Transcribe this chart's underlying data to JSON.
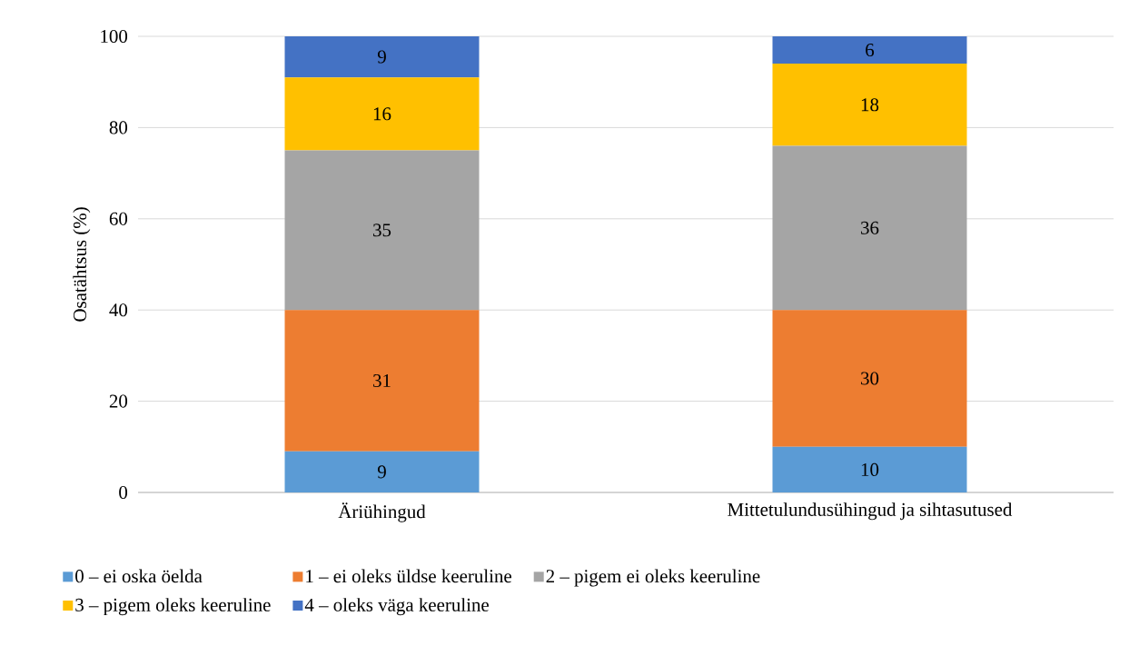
{
  "chart_data": {
    "type": "bar",
    "stacked": true,
    "ylabel": "Osatähtsus (%)",
    "categories": [
      "Äriühingud",
      "Mittetulundusühingud ja sihtasutused"
    ],
    "series": [
      {
        "name": "0 – ei oska öelda",
        "color": "#5b9bd5",
        "values": [
          9,
          10
        ]
      },
      {
        "name": "1 – ei oleks üldse keeruline",
        "color": "#ed7d31",
        "values": [
          31,
          30
        ]
      },
      {
        "name": "2 – pigem ei oleks keeruline",
        "color": "#a5a5a5",
        "values": [
          35,
          36
        ]
      },
      {
        "name": "3 – pigem oleks keeruline",
        "color": "#ffc000",
        "values": [
          16,
          18
        ]
      },
      {
        "name": "4 – oleks väga keeruline",
        "color": "#4472c4",
        "values": [
          9,
          6
        ]
      }
    ],
    "ylim": [
      0,
      100
    ],
    "yticks": [
      0,
      20,
      40,
      60,
      80,
      100
    ],
    "grid": "y",
    "legend": "bottom",
    "data_labels": true
  }
}
